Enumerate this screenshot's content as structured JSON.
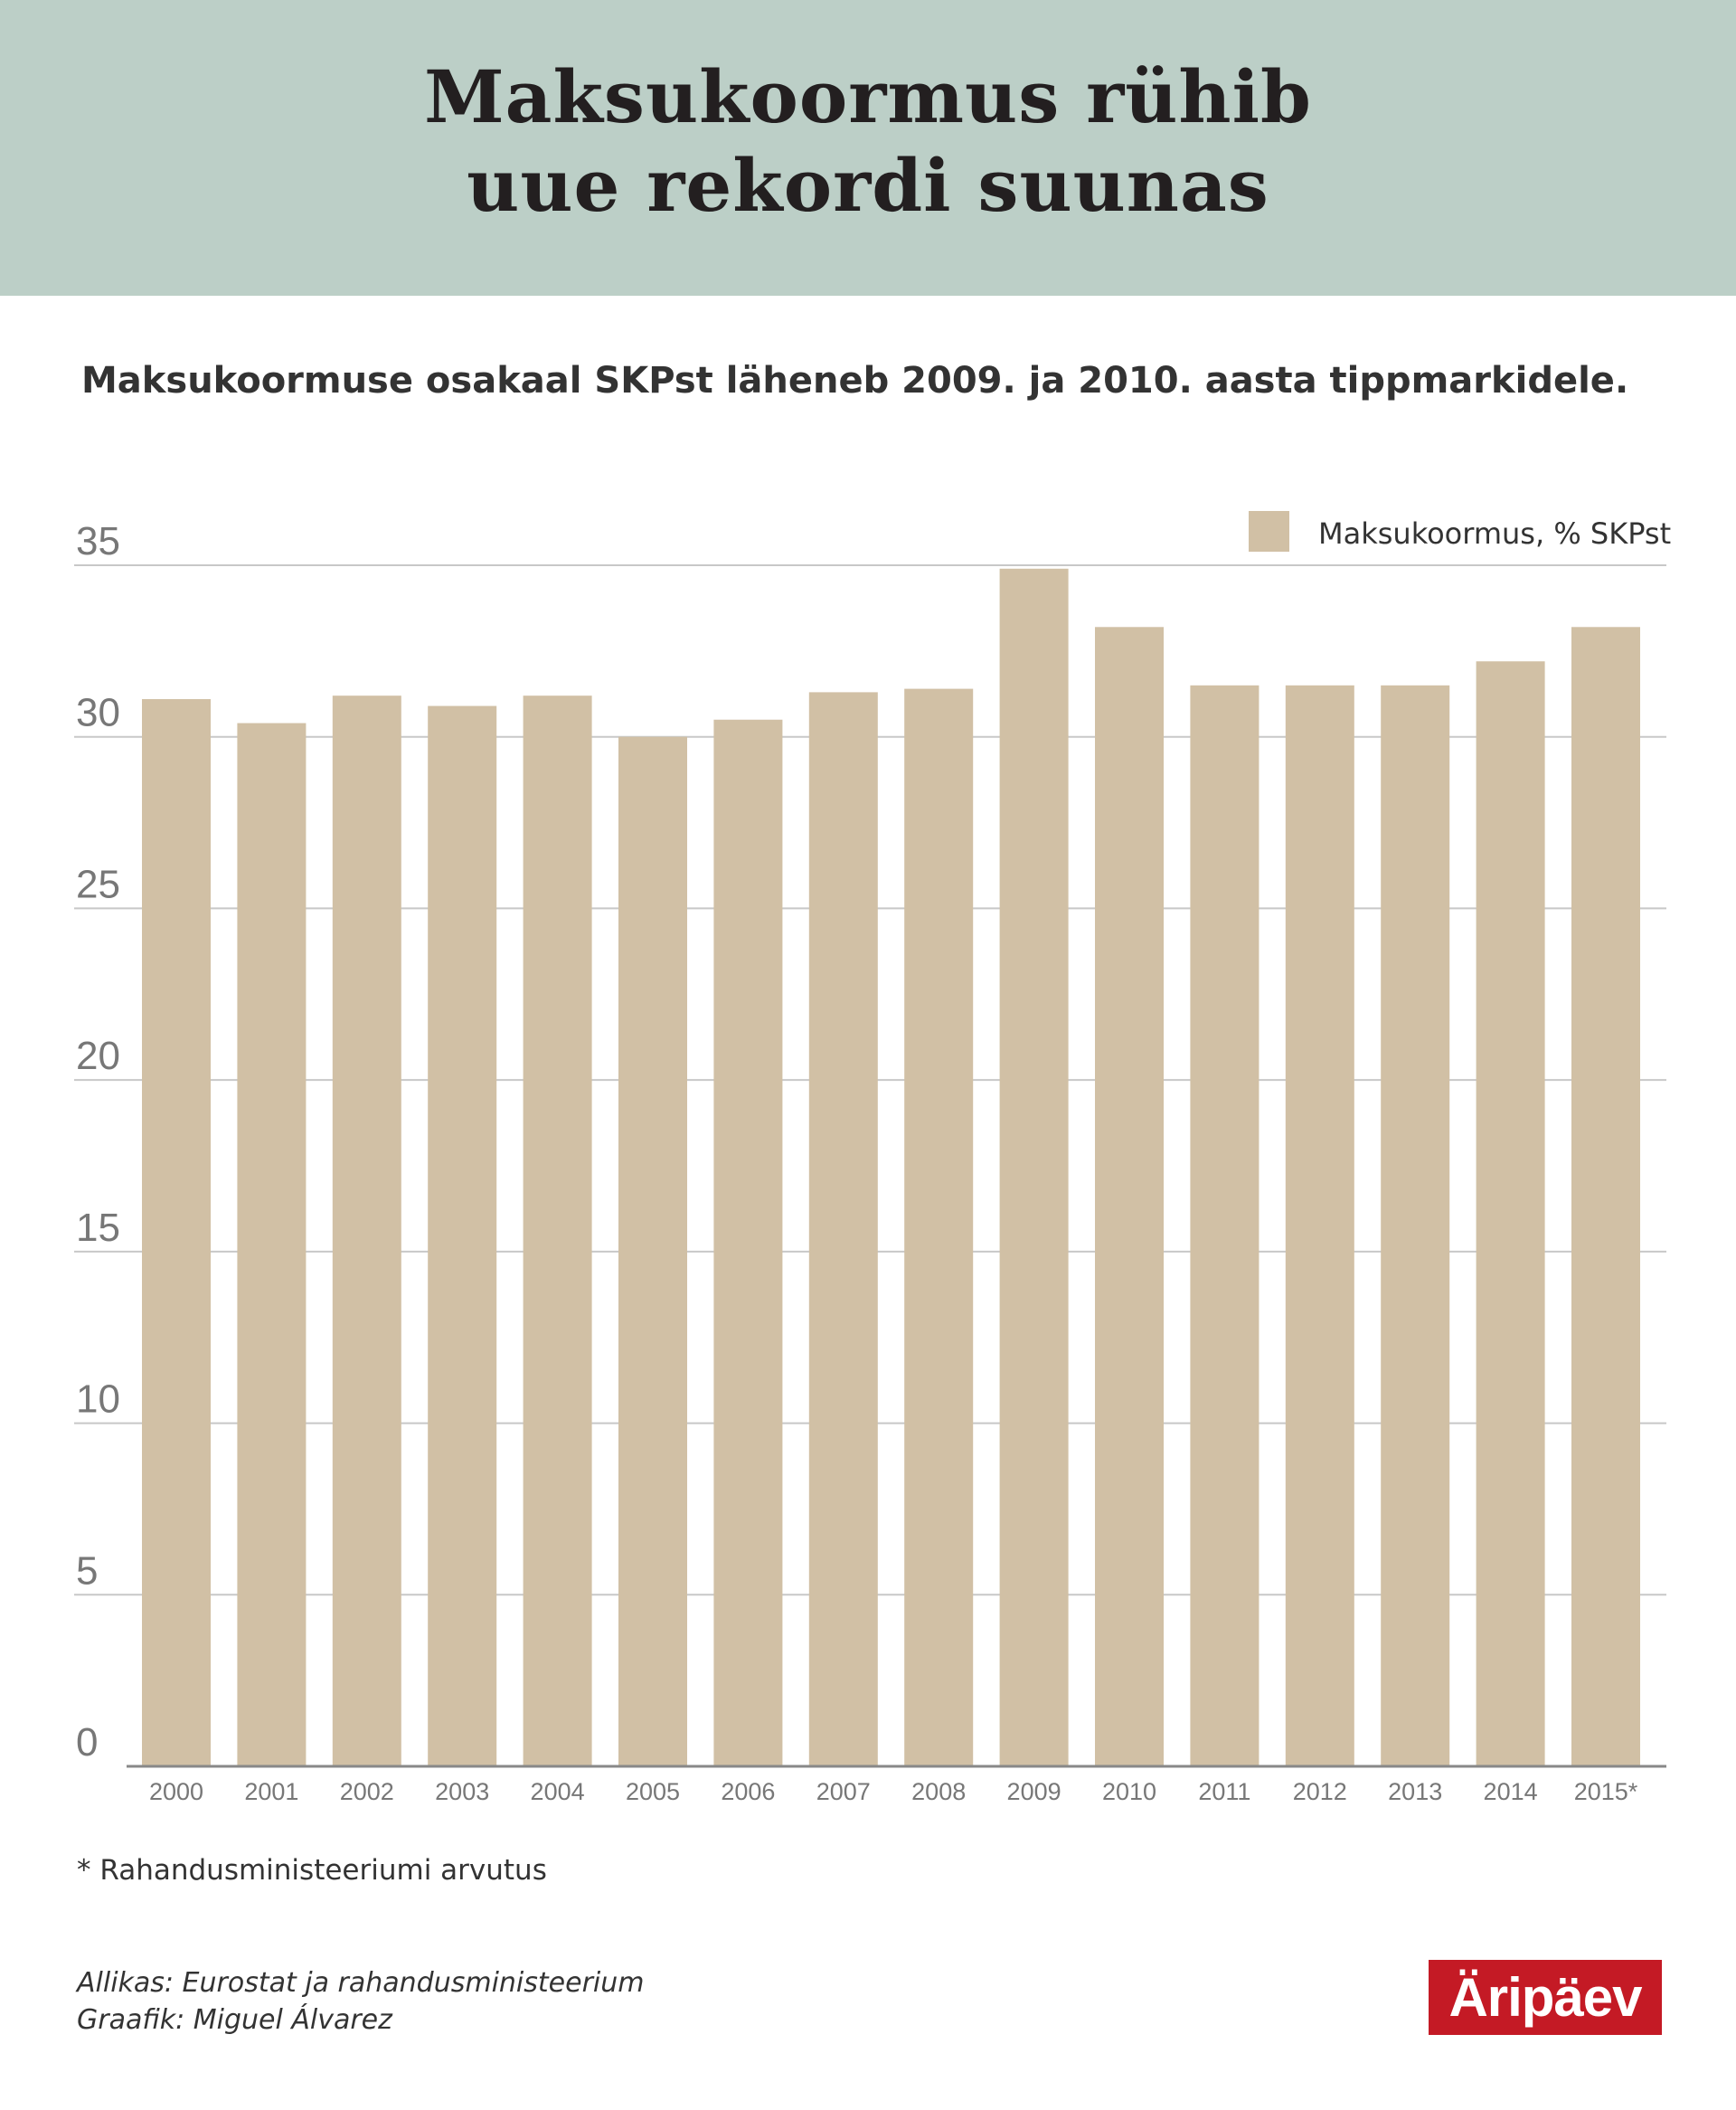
{
  "header": {
    "title_line1": "Maksukoormus rühib",
    "title_line2": "uue rekordi suunas"
  },
  "subtitle": "Maksukoormuse osakaal SKPst läheneb 2009. ja 2010. aasta tippmarkidele.",
  "footnote": "* Rahandusministeeriumi arvutus",
  "source": "Allikas:  Eurostat ja rahandusministeerium",
  "credit": "Graafik:  Miguel  Álvarez",
  "logo": "Äripäev",
  "colors": {
    "header_bg": "#bccfc7",
    "bar": "#d1c0a5",
    "grid": "#c8c8c8",
    "logo": "#c41a25"
  },
  "chart_data": {
    "type": "bar",
    "categories": [
      "2000",
      "2001",
      "2002",
      "2003",
      "2004",
      "2005",
      "2006",
      "2007",
      "2008",
      "2009",
      "2010",
      "2011",
      "2012",
      "2013",
      "2014",
      "2015*"
    ],
    "series": [
      {
        "name": "Maksukoormus, % SKPst",
        "values": [
          31.1,
          30.4,
          31.2,
          30.9,
          31.2,
          30.0,
          30.5,
          31.3,
          31.4,
          34.9,
          33.2,
          31.5,
          31.5,
          31.5,
          32.2,
          33.2
        ]
      }
    ],
    "yticks": [
      0,
      5,
      10,
      15,
      20,
      25,
      30,
      35
    ],
    "ylim": [
      0,
      35
    ],
    "grid": true,
    "legend": "top-right"
  }
}
